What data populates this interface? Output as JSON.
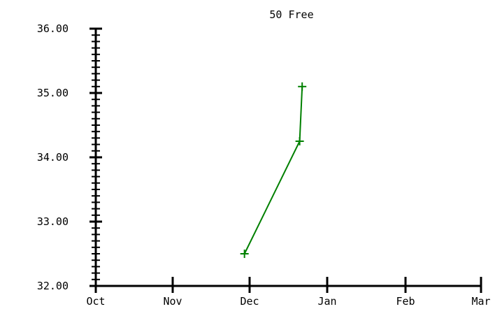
{
  "chart_data": {
    "type": "line",
    "title": "50 Free",
    "xlabel": "",
    "ylabel": "",
    "x_tick_labels": [
      "Oct",
      "Nov",
      "Dec",
      "Jan",
      "Feb",
      "Mar"
    ],
    "y_tick_labels": [
      "36.00",
      "35.00",
      "34.00",
      "33.00",
      "32.00"
    ],
    "xlim": [
      "2023-10-01",
      "2024-03-01"
    ],
    "ylim": [
      32.0,
      36.0
    ],
    "y_minor_step": 0.1,
    "grid": false,
    "legend": "none",
    "series": [
      {
        "color": "#008000",
        "marker": "plus",
        "points": [
          {
            "x": "2023-11-29",
            "y": 32.5
          },
          {
            "x": "2023-12-21",
            "y": 34.25
          },
          {
            "x": "2023-12-22",
            "y": 35.1
          }
        ]
      }
    ]
  }
}
